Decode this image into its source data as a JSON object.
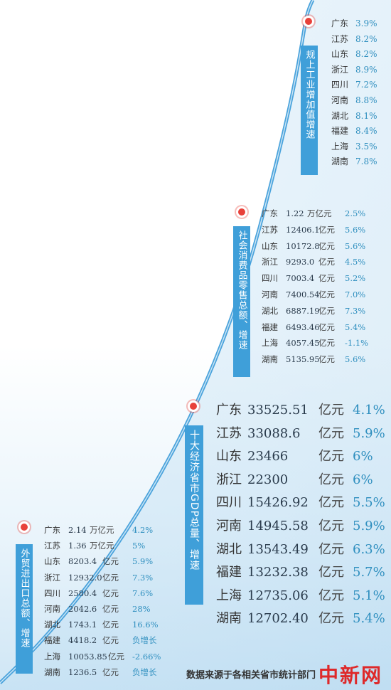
{
  "sections": {
    "industry": {
      "label": "规上工业增加值增速",
      "rows": [
        {
          "province": "广东",
          "rate": "3.9%"
        },
        {
          "province": "江苏",
          "rate": "8.2%"
        },
        {
          "province": "山东",
          "rate": "8.2%"
        },
        {
          "province": "浙江",
          "rate": "8.9%"
        },
        {
          "province": "四川",
          "rate": "7.2%"
        },
        {
          "province": "河南",
          "rate": "8.8%"
        },
        {
          "province": "湖北",
          "rate": "8.1%"
        },
        {
          "province": "福建",
          "rate": "8.4%"
        },
        {
          "province": "上海",
          "rate": "3.5%"
        },
        {
          "province": "湖南",
          "rate": "7.8%"
        }
      ]
    },
    "retail": {
      "label": "社会消费品零售总额、增速",
      "rows": [
        {
          "province": "广东",
          "value": "1.22",
          "unit": "万亿元",
          "rate": "2.5%"
        },
        {
          "province": "江苏",
          "value": "12406.1",
          "unit": "亿元",
          "rate": "5.6%"
        },
        {
          "province": "山东",
          "value": "10172.8",
          "unit": "亿元",
          "rate": "5.6%"
        },
        {
          "province": "浙江",
          "value": "9293.0",
          "unit": "亿元",
          "rate": "4.5%"
        },
        {
          "province": "四川",
          "value": "7003.4",
          "unit": "亿元",
          "rate": "5.2%"
        },
        {
          "province": "河南",
          "value": "7400.54",
          "unit": "亿元",
          "rate": "7.0%"
        },
        {
          "province": "湖北",
          "value": "6887.19",
          "unit": "亿元",
          "rate": "7.3%"
        },
        {
          "province": "福建",
          "value": "6493.46",
          "unit": "亿元",
          "rate": "5.4%"
        },
        {
          "province": "上海",
          "value": "4057.45",
          "unit": "亿元",
          "rate": "-1.1%"
        },
        {
          "province": "湖南",
          "value": "5135.95",
          "unit": "亿元",
          "rate": "5.6%"
        }
      ]
    },
    "gdp": {
      "label": "十大经济省市GDP总量、增速",
      "rows": [
        {
          "province": "广东",
          "value": "33525.51",
          "unit": "亿元",
          "rate": "4.1%"
        },
        {
          "province": "江苏",
          "value": "33088.6",
          "unit": "亿元",
          "rate": "5.9%"
        },
        {
          "province": "山东",
          "value": "23466",
          "unit": "亿元",
          "rate": "6%"
        },
        {
          "province": "浙江",
          "value": "22300",
          "unit": "亿元",
          "rate": "6%"
        },
        {
          "province": "四川",
          "value": "15426.92",
          "unit": "亿元",
          "rate": "5.5%"
        },
        {
          "province": "河南",
          "value": "14945.58",
          "unit": "亿元",
          "rate": "5.9%"
        },
        {
          "province": "湖北",
          "value": "13543.49",
          "unit": "亿元",
          "rate": "6.3%"
        },
        {
          "province": "福建",
          "value": "13232.38",
          "unit": "亿元",
          "rate": "5.7%"
        },
        {
          "province": "上海",
          "value": "12735.06",
          "unit": "亿元",
          "rate": "5.1%"
        },
        {
          "province": "湖南",
          "value": "12702.40",
          "unit": "亿元",
          "rate": "5.4%"
        }
      ]
    },
    "trade": {
      "label": "外贸进出口总额、增速",
      "rows": [
        {
          "province": "广东",
          "value": "2.14",
          "unit": "万亿元",
          "rate": "4.2%"
        },
        {
          "province": "江苏",
          "value": "1.36",
          "unit": "万亿元",
          "rate": "5%"
        },
        {
          "province": "山东",
          "value": "8203.4",
          "unit": "亿元",
          "rate": "5.9%"
        },
        {
          "province": "浙江",
          "value": "12932.0",
          "unit": "亿元",
          "rate": "7.3%"
        },
        {
          "province": "四川",
          "value": "2580.4",
          "unit": "亿元",
          "rate": "7.6%"
        },
        {
          "province": "河南",
          "value": "2042.6",
          "unit": "亿元",
          "rate": "28%"
        },
        {
          "province": "湖北",
          "value": "1743.1",
          "unit": "亿元",
          "rate": "16.6%"
        },
        {
          "province": "福建",
          "value": "4418.2",
          "unit": "亿元",
          "rate": "负增长"
        },
        {
          "province": "上海",
          "value": "10053.85",
          "unit": "亿元",
          "rate": "-2.66%"
        },
        {
          "province": "湖南",
          "value": "1236.5",
          "unit": "亿元",
          "rate": "负增长"
        }
      ]
    }
  },
  "footer": "数据来源于各相关省市统计部门",
  "logo": "中新网",
  "colors": {
    "accent": "#3f9fd9",
    "marker": "#e8413a",
    "rate": "#2f8fbf"
  }
}
